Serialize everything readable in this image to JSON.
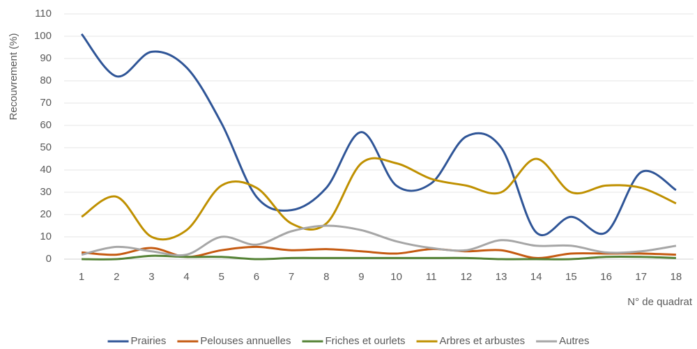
{
  "chart_data": {
    "type": "line",
    "y_label": "Recouvrement (%)",
    "x_label": "N° de quadrat",
    "categories": [
      1,
      2,
      3,
      4,
      5,
      6,
      7,
      8,
      9,
      10,
      11,
      12,
      13,
      14,
      15,
      16,
      17,
      18
    ],
    "series": [
      {
        "name": "Prairies",
        "color": "#2f5597",
        "values": [
          101,
          82,
          93,
          86,
          61,
          28,
          22,
          32,
          57,
          33,
          34,
          55,
          50,
          12,
          19,
          12,
          39,
          31
        ]
      },
      {
        "name": "Pelouses annuelles",
        "color": "#c55a11",
        "values": [
          3,
          2,
          5,
          1,
          4,
          5.5,
          4,
          4.5,
          3.5,
          2.5,
          4.5,
          3.5,
          4,
          0.5,
          2.5,
          2.5,
          2.5,
          2
        ]
      },
      {
        "name": "Friches et ourlets",
        "color": "#548235",
        "values": [
          0,
          0,
          1.5,
          1,
          1,
          0,
          0.5,
          0.5,
          0.5,
          0.5,
          0.5,
          0.5,
          0,
          0,
          0,
          1,
          1,
          0.5
        ]
      },
      {
        "name": "Arbres et arbustes",
        "color": "#bf9000",
        "values": [
          19,
          28,
          10,
          13,
          33,
          32,
          16,
          16,
          43,
          43,
          36,
          33,
          30,
          45,
          30,
          33,
          32,
          25
        ]
      },
      {
        "name": "Autres",
        "color": "#a6a6a6",
        "values": [
          2,
          5.5,
          3.5,
          2,
          10,
          6.5,
          12.5,
          15,
          13,
          8,
          5,
          4,
          8.5,
          6,
          6,
          3,
          3.5,
          6
        ]
      }
    ],
    "ylim": [
      0,
      110
    ],
    "yticks": [
      0,
      10,
      20,
      30,
      40,
      50,
      60,
      70,
      80,
      90,
      100,
      110
    ],
    "grid": true,
    "smooth": true,
    "legend": "bottom"
  }
}
